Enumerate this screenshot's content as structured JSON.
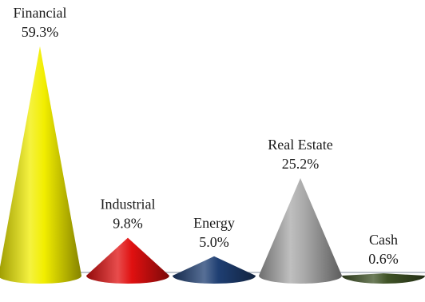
{
  "chart_data": {
    "type": "bar",
    "style": "3d-cone",
    "categories": [
      "Financial",
      "Industrial",
      "Energy",
      "Real Estate",
      "Cash"
    ],
    "values": [
      59.3,
      9.8,
      5.0,
      25.2,
      0.6
    ],
    "value_labels": [
      "59.3%",
      "9.8%",
      "5.0%",
      "25.2%",
      "0.6%"
    ],
    "unit": "%",
    "colors": [
      "#f2ee00",
      "#e01010",
      "#1f3f73",
      "#a9a9a9",
      "#3f5326"
    ],
    "ylim": [
      0,
      59.3
    ],
    "title": "",
    "xlabel": "",
    "ylabel": "",
    "grid": false,
    "legend": "none"
  }
}
